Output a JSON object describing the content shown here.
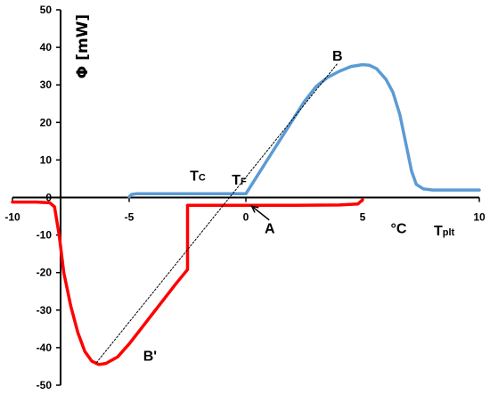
{
  "chart_data": {
    "type": "line",
    "xlim": [
      -10,
      10
    ],
    "ylim": [
      -50,
      50
    ],
    "x_ticks": [
      -10,
      -5,
      0,
      5,
      10
    ],
    "y_ticks": [
      50,
      40,
      30,
      20,
      10,
      0,
      -10,
      -20,
      -30,
      -40,
      -50
    ],
    "x_tick_labels": [
      "-10",
      "-5",
      "0",
      "5",
      "10"
    ],
    "y_tick_labels": [
      "50",
      "40",
      "30",
      "20",
      "10",
      "0",
      "-10",
      "-20",
      "-30",
      "-40",
      "-50"
    ],
    "ylabel": "Φ [mW]",
    "xunit": "°C",
    "xlabel_main": "T",
    "xlabel_sub": "plt",
    "grid": false,
    "series": [
      {
        "color": "#5b9bd5",
        "points": [
          [
            -5.0,
            0.2
          ],
          [
            -4.9,
            0.8
          ],
          [
            -4.7,
            1.0
          ],
          [
            0.0,
            1.0
          ],
          [
            0.5,
            5.9
          ],
          [
            1.0,
            10.8
          ],
          [
            1.5,
            15.7
          ],
          [
            2.0,
            20.6
          ],
          [
            2.5,
            25.5
          ],
          [
            3.0,
            29.5
          ],
          [
            3.5,
            32.0
          ],
          [
            4.0,
            33.6
          ],
          [
            4.5,
            34.9
          ],
          [
            5.0,
            35.4
          ],
          [
            5.3,
            35.2
          ],
          [
            5.6,
            34.3
          ],
          [
            6.0,
            31.5
          ],
          [
            6.3,
            28.0
          ],
          [
            6.6,
            22.0
          ],
          [
            6.9,
            13.0
          ],
          [
            7.1,
            7.0
          ],
          [
            7.3,
            3.5
          ],
          [
            7.6,
            2.3
          ],
          [
            8.0,
            2.0
          ],
          [
            9.0,
            2.0
          ],
          [
            10.0,
            2.0
          ]
        ]
      },
      {
        "color": "#ff0000",
        "points": [
          [
            -10.0,
            -1.2
          ],
          [
            -9.0,
            -1.2
          ],
          [
            -8.4,
            -1.4
          ],
          [
            -8.2,
            -2.5
          ],
          [
            -8.0,
            -10.0
          ],
          [
            -7.8,
            -20.0
          ],
          [
            -7.5,
            -29.0
          ],
          [
            -7.2,
            -36.0
          ],
          [
            -6.9,
            -41.0
          ],
          [
            -6.6,
            -43.6
          ],
          [
            -6.3,
            -44.5
          ],
          [
            -6.0,
            -44.2
          ],
          [
            -5.5,
            -42.5
          ],
          [
            -5.0,
            -39.0
          ],
          [
            -4.5,
            -35.0
          ],
          [
            -4.0,
            -31.0
          ],
          [
            -3.5,
            -27.0
          ],
          [
            -3.0,
            -23.0
          ],
          [
            -2.5,
            -19.2
          ],
          [
            -2.5,
            -2.1
          ],
          [
            0.0,
            -2.1
          ],
          [
            2.0,
            -2.1
          ],
          [
            4.0,
            -2.0
          ],
          [
            4.8,
            -1.7
          ],
          [
            5.0,
            -0.6
          ]
        ]
      },
      {
        "color": "#000000",
        "style": "dotted",
        "points": [
          [
            -6.4,
            -44.0
          ],
          [
            3.9,
            35.5
          ]
        ]
      }
    ],
    "annotations": [
      {
        "main": "B",
        "sub": "",
        "x": 3.7,
        "y": 36.5
      },
      {
        "main": "B'",
        "sub": "",
        "x": -4.4,
        "y": -43.5
      },
      {
        "main": "T",
        "sub": "C",
        "x": -2.4,
        "y": 4.5
      },
      {
        "main": "T",
        "sub": "F",
        "x": -0.6,
        "y": 3.5
      },
      {
        "main": "A",
        "sub": "",
        "x": 0.8,
        "y": -9.5
      },
      {
        "main": "°C",
        "sub": "",
        "x": 6.2,
        "y": -9.5
      }
    ],
    "arrow": {
      "from": [
        1.0,
        -6.0
      ],
      "to": [
        0.25,
        -2.3
      ]
    }
  }
}
